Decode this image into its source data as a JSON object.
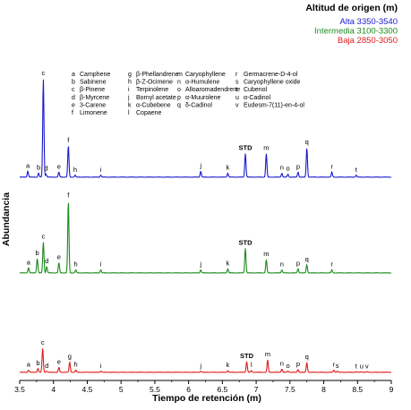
{
  "chart_data": {
    "type": "line",
    "xlabel": "Tiempo de retención (m)",
    "ylabel": "Abundancia",
    "xlim": [
      3.5,
      9
    ],
    "xticks": [
      "3.5",
      "4",
      "4.5",
      "5",
      "5.5",
      "6",
      "6.5",
      "7",
      "7.5",
      "8",
      "8.5",
      "9"
    ],
    "legend": {
      "title": "Altitud de origen (m)",
      "placement": "top-right",
      "entries": [
        {
          "name": "Alta 3350-3540",
          "color": "#1a1acc"
        },
        {
          "name": "Intermedia 3100-3300",
          "color": "#1a8a1a"
        },
        {
          "name": "Baja 2850-3050",
          "color": "#e01b1b"
        }
      ]
    },
    "compound_key": [
      {
        "code": "a",
        "name": "Camphene"
      },
      {
        "code": "b",
        "name": "Sabinene"
      },
      {
        "code": "c",
        "name": "β-Pinene"
      },
      {
        "code": "d",
        "name": "β-Myrcene"
      },
      {
        "code": "e",
        "name": "3-Carene"
      },
      {
        "code": "f",
        "name": "Limonene"
      },
      {
        "code": "g",
        "name": "β-Phellandrene"
      },
      {
        "code": "h",
        "name": "β-Z-Ocimene"
      },
      {
        "code": "i",
        "name": "Terpinolene"
      },
      {
        "code": "j",
        "name": "Bornyl acetate"
      },
      {
        "code": "k",
        "name": "α-Cubebene"
      },
      {
        "code": "l",
        "name": "Copaene"
      },
      {
        "code": "m",
        "name": "Caryophyllene"
      },
      {
        "code": "n",
        "name": "α-Humulene"
      },
      {
        "code": "o",
        "name": "Alloaromadendrene"
      },
      {
        "code": "p",
        "name": "α-Muurolene"
      },
      {
        "code": "q",
        "name": "δ-Cadinol"
      },
      {
        "code": "r",
        "name": "Germacrene-D-4-ol"
      },
      {
        "code": "s",
        "name": "Caryophyllene oxide"
      },
      {
        "code": "t",
        "name": "Cubenol"
      },
      {
        "code": "u",
        "name": "α-Cadinol"
      },
      {
        "code": "v",
        "name": "Eudesm-7(11)-en-4-ol"
      }
    ],
    "series": [
      {
        "name": "Alta 3350-3540",
        "color": "#1a1acc",
        "peaks": [
          {
            "label": "a",
            "x": 3.62,
            "h": 0.06
          },
          {
            "label": "b",
            "x": 3.78,
            "h": 0.04
          },
          {
            "label": "c",
            "x": 3.85,
            "h": 1.0
          },
          {
            "label": "d",
            "x": 3.89,
            "h": 0.03
          },
          {
            "label": "e",
            "x": 4.08,
            "h": 0.05
          },
          {
            "label": "f",
            "x": 4.22,
            "h": 0.32
          },
          {
            "label": "h",
            "x": 4.32,
            "h": 0.02
          },
          {
            "label": "i",
            "x": 4.7,
            "h": 0.02
          },
          {
            "label": "j",
            "x": 6.18,
            "h": 0.06
          },
          {
            "label": "k",
            "x": 6.58,
            "h": 0.04
          },
          {
            "label": "STD",
            "x": 6.84,
            "h": 0.24
          },
          {
            "label": "m",
            "x": 7.15,
            "h": 0.24
          },
          {
            "label": "n",
            "x": 7.38,
            "h": 0.04
          },
          {
            "label": "o",
            "x": 7.47,
            "h": 0.03
          },
          {
            "label": "p",
            "x": 7.62,
            "h": 0.05
          },
          {
            "label": "q",
            "x": 7.75,
            "h": 0.3
          },
          {
            "label": "r",
            "x": 8.12,
            "h": 0.05
          },
          {
            "label": "t",
            "x": 8.48,
            "h": 0.02
          }
        ]
      },
      {
        "name": "Intermedia 3100-3300",
        "color": "#1a8a1a",
        "peaks": [
          {
            "label": "a",
            "x": 3.63,
            "h": 0.05
          },
          {
            "label": "b",
            "x": 3.76,
            "h": 0.14
          },
          {
            "label": "c",
            "x": 3.85,
            "h": 0.3
          },
          {
            "label": "d",
            "x": 3.9,
            "h": 0.06
          },
          {
            "label": "e",
            "x": 4.08,
            "h": 0.1
          },
          {
            "label": "f",
            "x": 4.22,
            "h": 0.7
          },
          {
            "label": "h",
            "x": 4.33,
            "h": 0.03
          },
          {
            "label": "i",
            "x": 4.7,
            "h": 0.03
          },
          {
            "label": "j",
            "x": 6.18,
            "h": 0.03
          },
          {
            "label": "k",
            "x": 6.58,
            "h": 0.04
          },
          {
            "label": "STD",
            "x": 6.84,
            "h": 0.24
          },
          {
            "label": "m",
            "x": 7.15,
            "h": 0.13
          },
          {
            "label": "n",
            "x": 7.38,
            "h": 0.03
          },
          {
            "label": "p",
            "x": 7.62,
            "h": 0.04
          },
          {
            "label": "q",
            "x": 7.75,
            "h": 0.08
          },
          {
            "label": "r",
            "x": 8.12,
            "h": 0.03
          }
        ]
      },
      {
        "name": "Baja 2850-3050",
        "color": "#e01b1b",
        "peaks": [
          {
            "label": "a",
            "x": 3.63,
            "h": 0.04
          },
          {
            "label": "b",
            "x": 3.77,
            "h": 0.07
          },
          {
            "label": "c",
            "x": 3.84,
            "h": 0.45
          },
          {
            "label": "d",
            "x": 3.9,
            "h": 0.02
          },
          {
            "label": "e",
            "x": 4.08,
            "h": 0.09
          },
          {
            "label": "g",
            "x": 4.24,
            "h": 0.19
          },
          {
            "label": "h",
            "x": 4.33,
            "h": 0.04
          },
          {
            "label": "i",
            "x": 4.7,
            "h": 0.02
          },
          {
            "label": "j",
            "x": 6.18,
            "h": 0.02
          },
          {
            "label": "k",
            "x": 6.58,
            "h": 0.03
          },
          {
            "label": "STD",
            "x": 6.86,
            "h": 0.2
          },
          {
            "label": "l",
            "x": 6.93,
            "h": 0.03
          },
          {
            "label": "m",
            "x": 7.17,
            "h": 0.23
          },
          {
            "label": "n",
            "x": 7.38,
            "h": 0.06
          },
          {
            "label": "o",
            "x": 7.47,
            "h": 0.02
          },
          {
            "label": "p",
            "x": 7.62,
            "h": 0.05
          },
          {
            "label": "q",
            "x": 7.75,
            "h": 0.18
          },
          {
            "label": "r",
            "x": 8.15,
            "h": 0.04
          },
          {
            "label": "s",
            "x": 8.2,
            "h": 0.02
          },
          {
            "label": "t",
            "x": 8.48,
            "h": 0.01
          },
          {
            "label": "u",
            "x": 8.56,
            "h": 0.01
          },
          {
            "label": "v",
            "x": 8.64,
            "h": 0.01
          }
        ]
      }
    ]
  }
}
